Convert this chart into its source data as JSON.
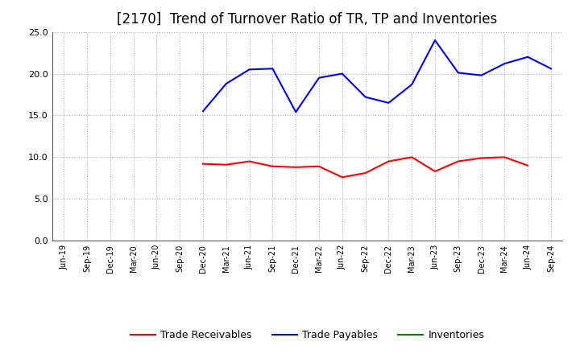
{
  "title": "[2170]  Trend of Turnover Ratio of TR, TP and Inventories",
  "x_labels": [
    "Jun-19",
    "Sep-19",
    "Dec-19",
    "Mar-20",
    "Jun-20",
    "Sep-20",
    "Dec-20",
    "Mar-21",
    "Jun-21",
    "Sep-21",
    "Dec-21",
    "Mar-22",
    "Jun-22",
    "Sep-22",
    "Dec-22",
    "Mar-23",
    "Jun-23",
    "Sep-23",
    "Dec-23",
    "Mar-24",
    "Jun-24",
    "Sep-24"
  ],
  "trade_receivables": [
    null,
    null,
    null,
    null,
    null,
    null,
    9.2,
    9.1,
    9.5,
    8.9,
    8.8,
    8.9,
    7.6,
    8.1,
    9.5,
    10.0,
    8.3,
    9.5,
    9.9,
    10.0,
    9.0,
    null
  ],
  "trade_payables": [
    null,
    null,
    null,
    null,
    null,
    null,
    15.5,
    18.8,
    20.5,
    20.6,
    15.4,
    19.5,
    20.0,
    17.2,
    16.5,
    18.7,
    24.0,
    20.1,
    19.8,
    21.2,
    22.0,
    20.6
  ],
  "inventories": [
    null,
    null,
    null,
    null,
    null,
    null,
    null,
    null,
    null,
    null,
    null,
    null,
    null,
    null,
    null,
    null,
    null,
    null,
    null,
    null,
    null,
    null
  ],
  "ylim": [
    0.0,
    25.0
  ],
  "yticks": [
    0.0,
    5.0,
    10.0,
    15.0,
    20.0,
    25.0
  ],
  "color_tr": "#ff0000",
  "color_tp": "#0000ff",
  "color_inv": "#008000",
  "background_color": "#ffffff",
  "grid_color": "#b0b0b0",
  "title_fontsize": 12,
  "legend_labels": [
    "Trade Receivables",
    "Trade Payables",
    "Inventories"
  ]
}
